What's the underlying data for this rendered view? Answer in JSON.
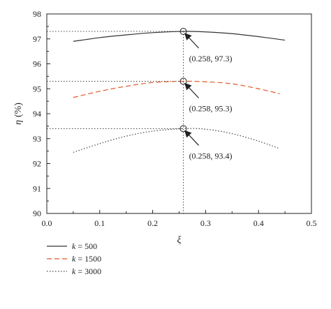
{
  "chart_data": {
    "type": "line",
    "xlabel": "ξ",
    "ylabel": "η",
    "ylabel_unit": "(%)",
    "xlim": [
      0.0,
      0.5
    ],
    "ylim": [
      90,
      98
    ],
    "xticks": [
      "0.0",
      "0.1",
      "0.2",
      "0.3",
      "0.4",
      "0.5"
    ],
    "yticks": [
      "90",
      "91",
      "92",
      "93",
      "94",
      "95",
      "96",
      "97",
      "98"
    ],
    "grid": false,
    "legend_position": "bottom-left",
    "series": [
      {
        "name": "k = 500",
        "legend_var": "k",
        "legend_value": "= 500",
        "style": "solid",
        "color": "#333333",
        "x": [
          0.05,
          0.1,
          0.15,
          0.2,
          0.258,
          0.3,
          0.35,
          0.4,
          0.45
        ],
        "y": [
          96.9,
          97.05,
          97.16,
          97.25,
          97.3,
          97.28,
          97.21,
          97.09,
          96.95
        ]
      },
      {
        "name": "k = 1500",
        "legend_var": "k",
        "legend_value": "= 1500",
        "style": "dashed",
        "color": "#e0582a",
        "x": [
          0.05,
          0.1,
          0.15,
          0.2,
          0.258,
          0.3,
          0.35,
          0.4,
          0.44
        ],
        "y": [
          94.65,
          94.9,
          95.1,
          95.25,
          95.3,
          95.28,
          95.2,
          95.0,
          94.8
        ]
      },
      {
        "name": "k = 3000",
        "legend_var": "k",
        "legend_value": "= 3000",
        "style": "dotted",
        "color": "#444444",
        "x": [
          0.05,
          0.1,
          0.15,
          0.2,
          0.258,
          0.3,
          0.35,
          0.4,
          0.44
        ],
        "y": [
          92.45,
          92.8,
          93.1,
          93.3,
          93.4,
          93.38,
          93.2,
          92.9,
          92.6
        ]
      }
    ],
    "annotations": [
      {
        "x": 0.258,
        "y": 97.3,
        "label": "(0.258, 97.3)"
      },
      {
        "x": 0.258,
        "y": 95.3,
        "label": "(0.258, 95.3)"
      },
      {
        "x": 0.258,
        "y": 93.4,
        "label": "(0.258, 93.4)"
      }
    ]
  }
}
